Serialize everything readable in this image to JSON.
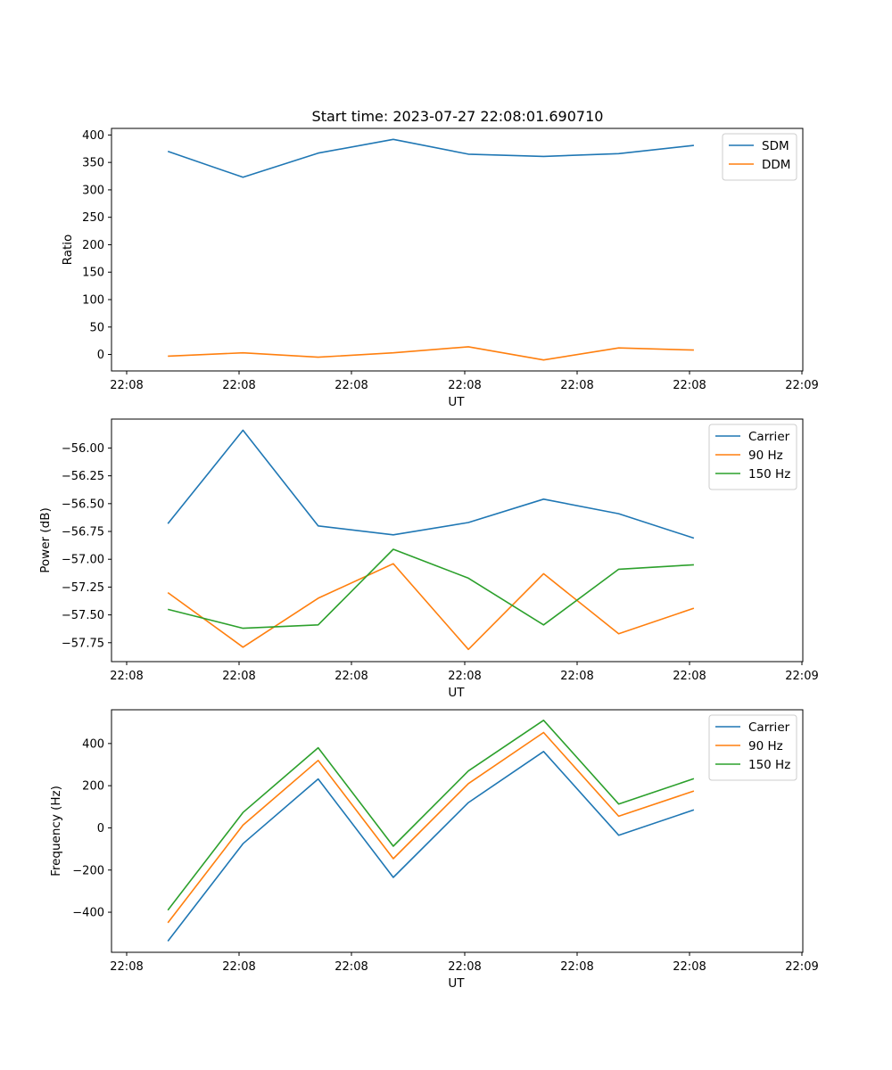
{
  "title": "Start time: 2023-07-27 22:08:01.690710",
  "colors": {
    "blue": "#1f77b4",
    "orange": "#ff7f0e",
    "green": "#2ca02c"
  },
  "chart_data": [
    {
      "type": "line",
      "xlabel": "UT",
      "ylabel": "Ratio",
      "x_tick_labels": [
        "22:08",
        "22:08",
        "22:08",
        "22:08",
        "22:08",
        "22:08",
        "22:08"
      ],
      "x_tick_labels_end": "22:09",
      "x_index": [
        0,
        1,
        2,
        3,
        4,
        5,
        6,
        7
      ],
      "x_range": [
        -0.75,
        8.45
      ],
      "ylim": [
        -30,
        412
      ],
      "yticks": [
        0,
        50,
        100,
        150,
        200,
        250,
        300,
        350,
        400
      ],
      "ytick_labels": [
        "0",
        "50",
        "100",
        "150",
        "200",
        "250",
        "300",
        "350",
        "400"
      ],
      "legend": "top-right",
      "series": [
        {
          "name": "SDM",
          "color": "#1f77b4",
          "values": [
            370,
            323,
            367,
            392,
            365,
            361,
            366,
            381
          ]
        },
        {
          "name": "DDM",
          "color": "#ff7f0e",
          "values": [
            -3,
            3,
            -5,
            3,
            14,
            -10,
            12,
            8
          ]
        }
      ]
    },
    {
      "type": "line",
      "xlabel": "UT",
      "ylabel": "Power (dB)",
      "x_tick_labels": [
        "22:08",
        "22:08",
        "22:08",
        "22:08",
        "22:08",
        "22:08",
        "22:08"
      ],
      "x_tick_labels_end": "22:09",
      "x_index": [
        0,
        1,
        2,
        3,
        4,
        5,
        6,
        7
      ],
      "x_range": [
        -0.75,
        8.45
      ],
      "ylim": [
        -57.92,
        -55.74
      ],
      "yticks": [
        -57.75,
        -57.5,
        -57.25,
        -57.0,
        -56.75,
        -56.5,
        -56.25,
        -56.0
      ],
      "ytick_labels": [
        "−57.75",
        "−57.50",
        "−57.25",
        "−57.00",
        "−56.75",
        "−56.50",
        "−56.25",
        "−56.00"
      ],
      "legend": "top-right",
      "series": [
        {
          "name": "Carrier",
          "color": "#1f77b4",
          "values": [
            -56.68,
            -55.84,
            -56.7,
            -56.78,
            -56.67,
            -56.46,
            -56.59,
            -56.81
          ]
        },
        {
          "name": "90 Hz",
          "color": "#ff7f0e",
          "values": [
            -57.3,
            -57.79,
            -57.35,
            -57.04,
            -57.81,
            -57.13,
            -57.67,
            -57.44
          ]
        },
        {
          "name": "150 Hz",
          "color": "#2ca02c",
          "values": [
            -57.45,
            -57.62,
            -57.59,
            -56.91,
            -57.17,
            -57.59,
            -57.09,
            -57.05
          ]
        }
      ]
    },
    {
      "type": "line",
      "xlabel": "UT",
      "ylabel": "Frequency (Hz)",
      "x_tick_labels": [
        "22:08",
        "22:08",
        "22:08",
        "22:08",
        "22:08",
        "22:08",
        "22:08"
      ],
      "x_tick_labels_end": "22:09",
      "x_index": [
        0,
        1,
        2,
        3,
        4,
        5,
        6,
        7
      ],
      "x_range": [
        -0.75,
        8.45
      ],
      "ylim": [
        -590,
        560
      ],
      "yticks": [
        -400,
        -200,
        0,
        200,
        400
      ],
      "ytick_labels": [
        "−400",
        "−200",
        "0",
        "200",
        "400"
      ],
      "legend": "top-right",
      "series": [
        {
          "name": "Carrier",
          "color": "#1f77b4",
          "values": [
            -537,
            -75,
            232,
            -235,
            120,
            362,
            -35,
            85
          ]
        },
        {
          "name": "90 Hz",
          "color": "#ff7f0e",
          "values": [
            -450,
            13,
            320,
            -146,
            210,
            452,
            55,
            175
          ]
        },
        {
          "name": "150 Hz",
          "color": "#2ca02c",
          "values": [
            -390,
            73,
            380,
            -87,
            270,
            510,
            113,
            233
          ]
        }
      ]
    }
  ]
}
